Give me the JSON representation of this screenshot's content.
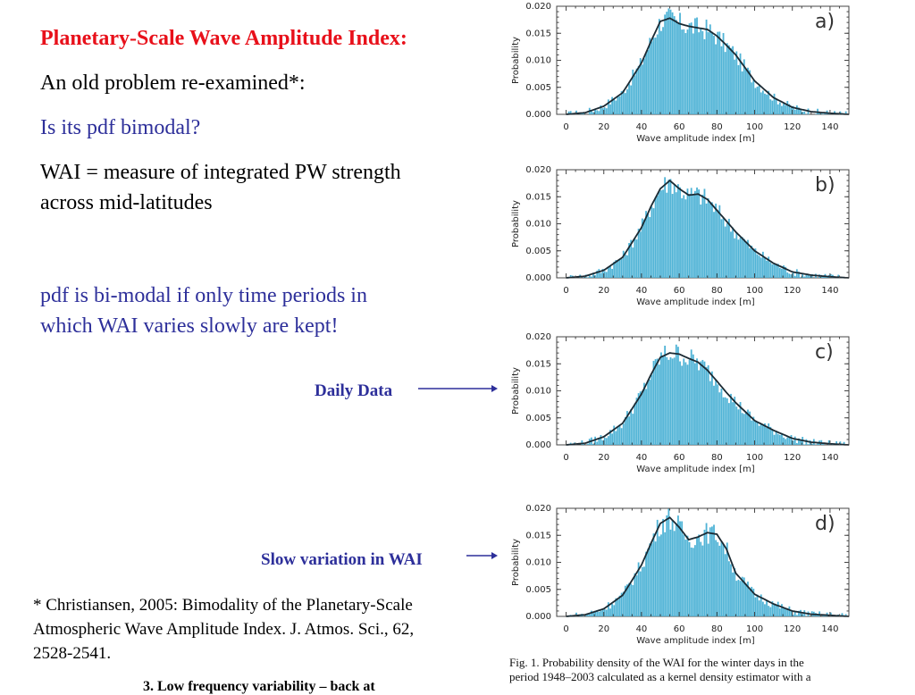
{
  "slide": {
    "title": "Planetary-Scale Wave Amplitude Index:",
    "line1": "An old problem re-examined*:",
    "question": "Is its pdf bimodal?",
    "definition_line1": "WAI = measure of integrated PW strength",
    "definition_line2": "across mid-latitudes",
    "conclusion_line1": "pdf is bi-modal if only time periods in",
    "conclusion_line2": "which WAI varies slowly are kept!",
    "label_daily": "Daily Data",
    "label_slow": "Slow variation in WAI",
    "reference_line1": "* Christiansen, 2005: Bimodality of the Planetary-Scale",
    "reference_line2": "Atmospheric Wave Amplitude Index. J. Atmos. Sci., 62,",
    "reference_line3": "2528-2541.",
    "cutoff_text": "3. Low frequency variability – back at",
    "caption_line1": "Fig. 1. Probability density of the WAI for the winter days in the",
    "caption_line2": "period 1948–2003 calculated as a kernel density estimator with a"
  },
  "colors": {
    "bar": "#4fb3d6",
    "curve": "#1b2a33",
    "title": "#e8101a",
    "blue_text": "#2d2f9a"
  },
  "chart_data": [
    {
      "type": "bar",
      "panel": "a)",
      "xlabel": "Wave amplitude index [m]",
      "ylabel": "Probability",
      "xlim": [
        -5,
        150
      ],
      "ylim": [
        0,
        0.02
      ],
      "xticks": [
        "0",
        "20",
        "40",
        "60",
        "80",
        "100",
        "120",
        "140"
      ],
      "yticks": [
        "0.000",
        "0.005",
        "0.010",
        "0.015",
        "0.020"
      ],
      "x": [
        0,
        10,
        20,
        30,
        40,
        45,
        50,
        55,
        60,
        65,
        70,
        75,
        80,
        85,
        90,
        100,
        110,
        120,
        130,
        140,
        150
      ],
      "y": [
        0,
        0.0003,
        0.0015,
        0.004,
        0.0095,
        0.0135,
        0.0172,
        0.0178,
        0.0168,
        0.0163,
        0.016,
        0.0157,
        0.0145,
        0.0128,
        0.011,
        0.0062,
        0.0031,
        0.0013,
        0.0005,
        0.0002,
        0
      ]
    },
    {
      "type": "bar",
      "panel": "b)",
      "xlabel": "Wave amplitude index [m]",
      "ylabel": "Probability",
      "xlim": [
        -5,
        150
      ],
      "ylim": [
        0,
        0.02
      ],
      "xticks": [
        "0",
        "20",
        "40",
        "60",
        "80",
        "100",
        "120",
        "140"
      ],
      "yticks": [
        "0.000",
        "0.005",
        "0.010",
        "0.015",
        "0.020"
      ],
      "x": [
        0,
        10,
        20,
        30,
        40,
        45,
        50,
        55,
        60,
        65,
        70,
        75,
        80,
        85,
        90,
        100,
        110,
        120,
        130,
        140,
        150
      ],
      "y": [
        0,
        0.0003,
        0.0014,
        0.0038,
        0.0093,
        0.0132,
        0.0165,
        0.018,
        0.0165,
        0.0153,
        0.0155,
        0.0145,
        0.0125,
        0.0105,
        0.0085,
        0.005,
        0.0027,
        0.0011,
        0.0005,
        0.0002,
        0
      ]
    },
    {
      "type": "bar",
      "panel": "c)",
      "xlabel": "Wave amplitude index [m]",
      "ylabel": "Probability",
      "xlim": [
        -5,
        150
      ],
      "ylim": [
        0,
        0.02
      ],
      "xticks": [
        "0",
        "20",
        "40",
        "60",
        "80",
        "100",
        "120",
        "140"
      ],
      "yticks": [
        "0.000",
        "0.005",
        "0.010",
        "0.015",
        "0.020"
      ],
      "x": [
        0,
        10,
        20,
        30,
        40,
        45,
        50,
        55,
        60,
        65,
        70,
        75,
        80,
        85,
        90,
        100,
        110,
        120,
        130,
        140,
        150
      ],
      "y": [
        0,
        0.0003,
        0.0015,
        0.004,
        0.0094,
        0.013,
        0.0162,
        0.017,
        0.0168,
        0.016,
        0.0153,
        0.0138,
        0.0118,
        0.0097,
        0.0078,
        0.0045,
        0.0027,
        0.0012,
        0.0005,
        0.0002,
        0
      ]
    },
    {
      "type": "bar",
      "panel": "d)",
      "xlabel": "Wave amplitude index [m]",
      "ylabel": "Probability",
      "xlim": [
        -5,
        150
      ],
      "ylim": [
        0,
        0.02
      ],
      "xticks": [
        "0",
        "20",
        "40",
        "60",
        "80",
        "100",
        "120",
        "140"
      ],
      "yticks": [
        "0.000",
        "0.005",
        "0.010",
        "0.015",
        "0.020"
      ],
      "x": [
        0,
        10,
        20,
        30,
        40,
        45,
        50,
        55,
        60,
        65,
        70,
        75,
        80,
        85,
        90,
        100,
        110,
        120,
        130,
        140,
        150
      ],
      "y": [
        0,
        0.0003,
        0.0014,
        0.0039,
        0.0095,
        0.0135,
        0.0172,
        0.0183,
        0.0165,
        0.0142,
        0.0147,
        0.0155,
        0.0152,
        0.0125,
        0.008,
        0.0041,
        0.0023,
        0.001,
        0.0004,
        0.0002,
        0
      ]
    }
  ]
}
